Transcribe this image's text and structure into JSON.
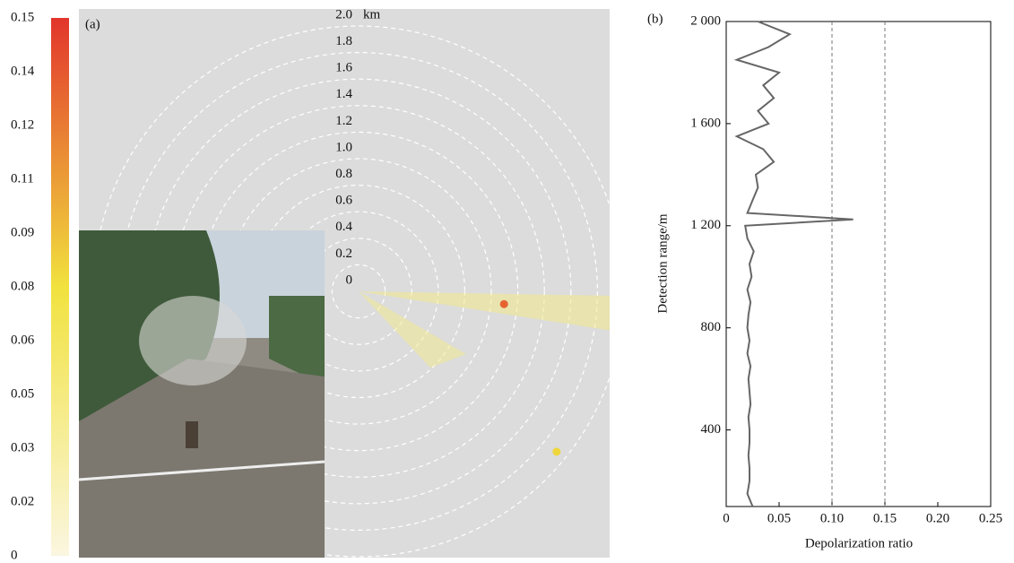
{
  "chart_data": [
    {
      "type": "polar",
      "title": "(a)",
      "unit": "km",
      "rlim": [
        0,
        2
      ],
      "rticks": [
        0,
        0.2,
        0.4,
        0.6,
        0.8,
        {
          "value": 1,
          "label": "1.0"
        },
        1.2,
        1.4,
        1.6,
        1.8,
        {
          "value": 2,
          "label": "2.0"
        }
      ],
      "points": [
        {
          "range": 1.1,
          "azimuth": 95,
          "value": 0.13
        },
        {
          "range": 1.92,
          "azimuth": 129,
          "value": 0.08
        }
      ],
      "colorbar": {
        "lim": [
          0,
          0.15
        ],
        "colors": [
          "#fbf6e0",
          "#f1e23e",
          "#e2352c"
        ],
        "ticks": [
          0,
          {
            "value": 0.015,
            "label": "0.02"
          },
          0.03,
          {
            "value": 0.045,
            "label": "0.05"
          },
          0.06,
          {
            "value": 0.075,
            "label": "0.08"
          },
          0.09,
          {
            "value": 0.105,
            "label": "0.11"
          },
          0.12,
          {
            "value": 0.135,
            "label": "0.14"
          },
          0.15
        ]
      }
    },
    {
      "type": "line",
      "title": "(b)",
      "x_label": "Depolarization ratio",
      "y_label": "Detection range/m",
      "color": "#666666",
      "xlim": [
        0,
        0.25
      ],
      "xticks": [
        0,
        0.05,
        {
          "value": 0.1,
          "label": "0.10"
        },
        0.15,
        {
          "value": 0.2,
          "label": "0.20"
        },
        0.25
      ],
      "ylim": [
        100,
        2000
      ],
      "yticks": [
        400,
        800,
        {
          "value": 1200,
          "label": "1 200"
        },
        {
          "value": 1600,
          "label": "1 600"
        },
        {
          "value": 2000,
          "label": "2 000"
        }
      ],
      "reference_lines": [
        0.1,
        0.15
      ],
      "y": [
        100,
        150,
        200,
        250,
        300,
        350,
        400,
        450,
        500,
        550,
        600,
        650,
        700,
        750,
        800,
        850,
        900,
        950,
        1000,
        1050,
        1100,
        1150,
        1200,
        1225,
        1250,
        1300,
        1350,
        1400,
        1450,
        1500,
        1550,
        1600,
        1650,
        1700,
        1750,
        1800,
        1850,
        1900,
        1950,
        2000
      ],
      "values": [
        0.025,
        0.02,
        0.022,
        0.022,
        0.021,
        0.022,
        0.022,
        0.021,
        0.023,
        0.022,
        0.021,
        0.023,
        0.02,
        0.022,
        0.02,
        0.021,
        0.023,
        0.02,
        0.024,
        0.022,
        0.026,
        0.02,
        0.018,
        0.12,
        0.02,
        0.025,
        0.03,
        0.028,
        0.045,
        0.035,
        0.01,
        0.04,
        0.03,
        0.045,
        0.035,
        0.05,
        0.01,
        0.04,
        0.06,
        0.03
      ]
    }
  ]
}
